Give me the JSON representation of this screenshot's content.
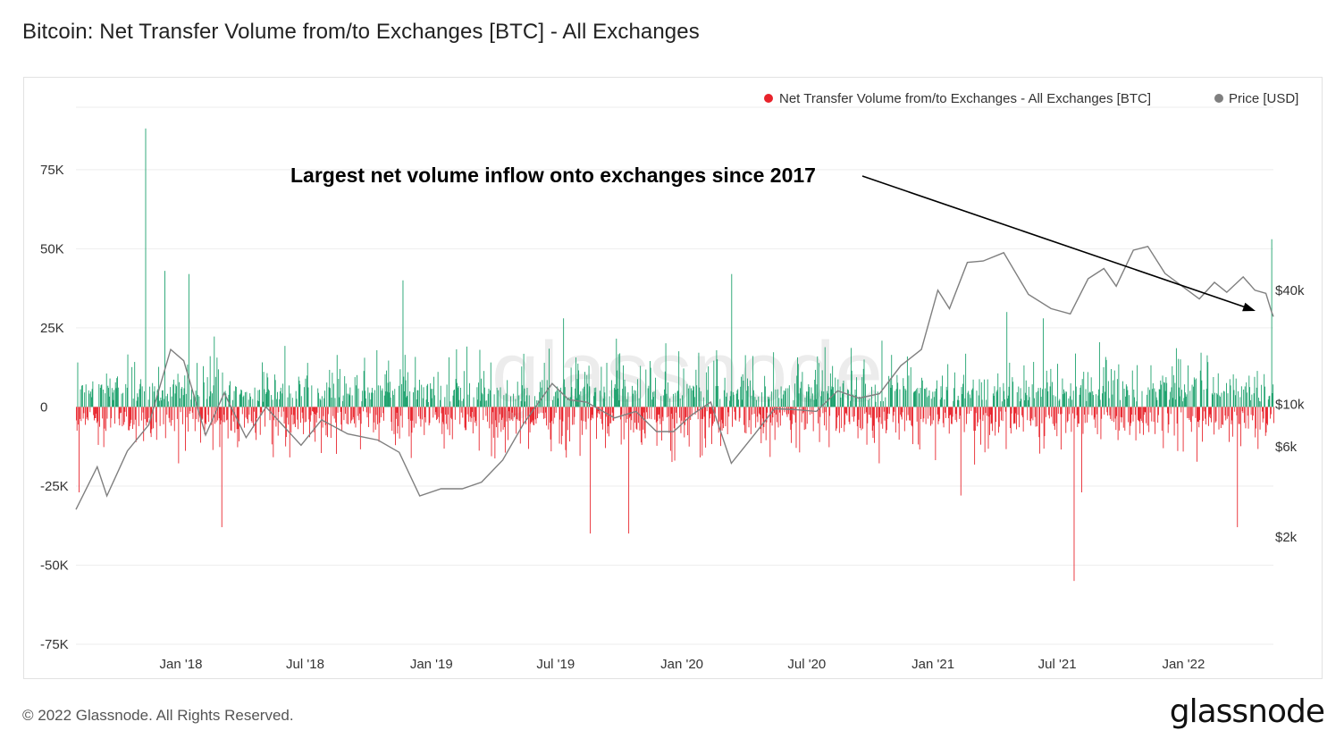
{
  "title": "Bitcoin: Net Transfer Volume from/to Exchanges [BTC] - All Exchanges",
  "footer": {
    "copyright": "© 2022 Glassnode. All Rights Reserved.",
    "brand": "glassnode"
  },
  "watermark": "glassnode",
  "colors": {
    "inflow": "#1aa06b",
    "outflow": "#e8232b",
    "price": "#7f7f7f",
    "arrow": "#000000",
    "grid": "#eeeeee"
  },
  "chart_data": {
    "type": "bar",
    "legend": {
      "position": "top-right",
      "entries": [
        {
          "name": "Net Transfer Volume from/to Exchanges - All Exchanges [BTC]",
          "color": "#e8232b"
        },
        {
          "name": "Price [USD]",
          "color": "#7f7f7f"
        }
      ]
    },
    "annotation": {
      "text": "Largest net volume inflow onto exchanges since 2017",
      "points_to": "2022-05-09"
    },
    "x_range": [
      "2017-08-01",
      "2022-05-12"
    ],
    "x_ticks": [
      "Jan '18",
      "Jul '18",
      "Jan '19",
      "Jul '19",
      "Jan '20",
      "Jul '20",
      "Jan '21",
      "Jul '21",
      "Jan '22"
    ],
    "left_axis": {
      "ticks": [
        "75K",
        "50K",
        "25K",
        "0",
        "-25K",
        "-50K",
        "-75K"
      ],
      "ylim": [
        -75000,
        95000
      ]
    },
    "right_axis": {
      "ticks": [
        "$40k",
        "$10k",
        "$6k",
        "$2k"
      ],
      "scale": "log"
    },
    "grid": true,
    "notable_flows": [
      {
        "date": "2017-08-05",
        "value": -27000
      },
      {
        "date": "2017-11-10",
        "value": 88000
      },
      {
        "date": "2017-12-08",
        "value": 43000
      },
      {
        "date": "2018-01-12",
        "value": 42000
      },
      {
        "date": "2018-03-01",
        "value": -38000
      },
      {
        "date": "2018-11-20",
        "value": 40000
      },
      {
        "date": "2019-07-12",
        "value": 28000
      },
      {
        "date": "2019-08-20",
        "value": -40000
      },
      {
        "date": "2019-10-15",
        "value": -40000
      },
      {
        "date": "2020-03-13",
        "value": 42000
      },
      {
        "date": "2021-02-10",
        "value": -28000
      },
      {
        "date": "2021-04-18",
        "value": 30000
      },
      {
        "date": "2021-06-10",
        "value": 28000
      },
      {
        "date": "2021-07-25",
        "value": -55000
      },
      {
        "date": "2021-08-05",
        "value": -27000
      },
      {
        "date": "2022-03-20",
        "value": -38000
      },
      {
        "date": "2022-05-09",
        "value": 53000
      }
    ],
    "series": [
      {
        "name": "Price [USD]",
        "axis": "right",
        "points": [
          [
            "2017-08-01",
            2800
          ],
          [
            "2017-09-01",
            4700
          ],
          [
            "2017-09-15",
            3300
          ],
          [
            "2017-10-15",
            5700
          ],
          [
            "2017-11-15",
            7800
          ],
          [
            "2017-12-17",
            19500
          ],
          [
            "2018-01-05",
            17000
          ],
          [
            "2018-02-06",
            6900
          ],
          [
            "2018-03-05",
            11500
          ],
          [
            "2018-04-06",
            6700
          ],
          [
            "2018-05-05",
            9700
          ],
          [
            "2018-06-25",
            6100
          ],
          [
            "2018-07-25",
            8300
          ],
          [
            "2018-09-01",
            7000
          ],
          [
            "2018-10-15",
            6500
          ],
          [
            "2018-11-15",
            5600
          ],
          [
            "2018-12-15",
            3300
          ],
          [
            "2019-01-15",
            3600
          ],
          [
            "2019-02-15",
            3600
          ],
          [
            "2019-03-15",
            3900
          ],
          [
            "2019-04-15",
            5100
          ],
          [
            "2019-05-15",
            7900
          ],
          [
            "2019-06-26",
            12900
          ],
          [
            "2019-07-20",
            10600
          ],
          [
            "2019-08-15",
            10300
          ],
          [
            "2019-09-25",
            8500
          ],
          [
            "2019-10-26",
            9200
          ],
          [
            "2019-11-25",
            7200
          ],
          [
            "2019-12-20",
            7200
          ],
          [
            "2020-01-15",
            8800
          ],
          [
            "2020-02-12",
            10300
          ],
          [
            "2020-03-13",
            4900
          ],
          [
            "2020-04-15",
            6900
          ],
          [
            "2020-05-15",
            9500
          ],
          [
            "2020-06-15",
            9400
          ],
          [
            "2020-07-15",
            9200
          ],
          [
            "2020-08-15",
            11800
          ],
          [
            "2020-09-15",
            10800
          ],
          [
            "2020-10-15",
            11400
          ],
          [
            "2020-11-15",
            16000
          ],
          [
            "2020-12-15",
            19500
          ],
          [
            "2021-01-08",
            40000
          ],
          [
            "2021-01-25",
            32000
          ],
          [
            "2021-02-20",
            56000
          ],
          [
            "2021-03-15",
            57000
          ],
          [
            "2021-04-14",
            63000
          ],
          [
            "2021-05-20",
            38000
          ],
          [
            "2021-06-22",
            32000
          ],
          [
            "2021-07-20",
            30000
          ],
          [
            "2021-08-15",
            46000
          ],
          [
            "2021-09-07",
            52000
          ],
          [
            "2021-09-25",
            42000
          ],
          [
            "2021-10-20",
            65000
          ],
          [
            "2021-11-10",
            68000
          ],
          [
            "2021-12-05",
            49000
          ],
          [
            "2022-01-24",
            36000
          ],
          [
            "2022-02-15",
            44000
          ],
          [
            "2022-03-05",
            39000
          ],
          [
            "2022-03-29",
            47000
          ],
          [
            "2022-04-15",
            40000
          ],
          [
            "2022-05-01",
            38500
          ],
          [
            "2022-05-09",
            31000
          ],
          [
            "2022-05-12",
            29000
          ]
        ]
      }
    ]
  }
}
